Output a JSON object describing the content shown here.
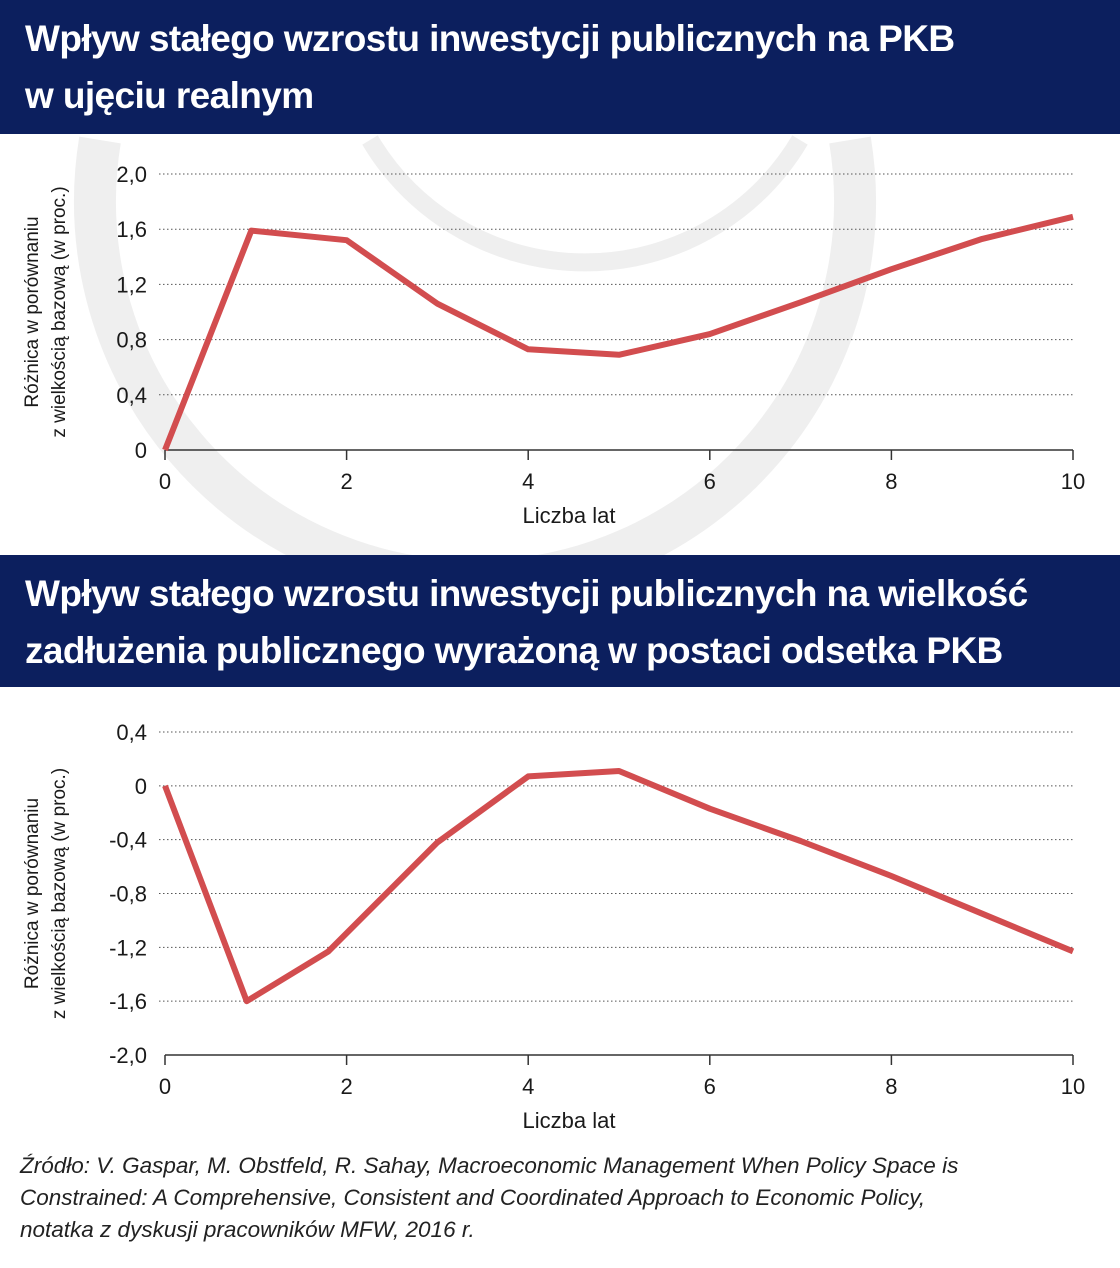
{
  "colors": {
    "banner": "#0c1f5e",
    "line": "#d24d4f",
    "grid": "#555555",
    "axis": "#333333",
    "watermark": "#efefef"
  },
  "chart_data": [
    {
      "type": "line",
      "title_lines": [
        "Wpływ stałego wzrostu inwestycji publicznych na PKB",
        "w ujęciu realnym"
      ],
      "xlabel": "Liczba lat",
      "ylabel_lines": [
        "Różnica w porównaniu",
        "z wielkością bazową (w proc.)"
      ],
      "xlim": [
        0,
        10
      ],
      "ylim": [
        0,
        2.0
      ],
      "x_ticks": [
        "0",
        "2",
        "4",
        "6",
        "8",
        "10"
      ],
      "y_ticks": [
        "0",
        "0,4",
        "0,8",
        "1,2",
        "1,6",
        "2,0"
      ],
      "grid": "horizontal dotted",
      "series": [
        {
          "x": [
            0,
            0.95,
            2,
            3,
            4,
            5,
            6,
            7,
            8,
            9,
            10
          ],
          "y": [
            0,
            1.59,
            1.52,
            1.06,
            0.73,
            0.69,
            0.84,
            1.07,
            1.31,
            1.53,
            1.69
          ]
        }
      ]
    },
    {
      "type": "line",
      "title_lines": [
        "Wpływ stałego wzrostu inwestycji publicznych na wielkość",
        "zadłużenia publicznego wyrażoną w postaci odsetka PKB"
      ],
      "xlabel": "Liczba lat",
      "ylabel_lines": [
        "Różnica w porównaniu",
        "z wielkością bazową (w proc.)"
      ],
      "xlim": [
        0,
        10
      ],
      "ylim": [
        -2.0,
        0.4
      ],
      "x_ticks": [
        "0",
        "2",
        "4",
        "6",
        "8",
        "10"
      ],
      "y_ticks": [
        "-2,0",
        "-1,6",
        "-1,2",
        "-0,8",
        "-0,4",
        "0",
        "0,4"
      ],
      "grid": "horizontal dotted",
      "series": [
        {
          "x": [
            0,
            0.9,
            1.8,
            3,
            4,
            5,
            6,
            7,
            8,
            9,
            10
          ],
          "y": [
            0,
            -1.6,
            -1.23,
            -0.42,
            0.07,
            0.11,
            -0.17,
            -0.41,
            -0.67,
            -0.95,
            -1.23
          ]
        }
      ]
    }
  ],
  "source": {
    "lines": [
      "Źródło: V. Gaspar, M. Obstfeld, R. Sahay, Macroeconomic Management When Policy Space is",
      "Constrained: A Comprehensive, Consistent and Coordinated Approach to Economic Policy,",
      "notatka z dyskusji pracowników MFW, 2016 r."
    ]
  }
}
